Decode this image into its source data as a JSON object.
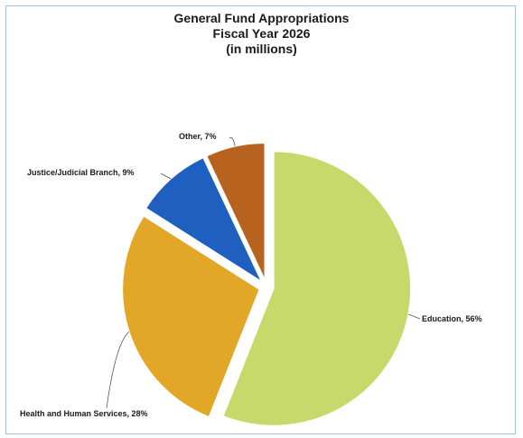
{
  "chart_data": {
    "type": "pie",
    "title": [
      "General Fund Appropriations",
      "Fiscal Year 2026",
      "(in millions)"
    ],
    "slices": [
      {
        "label": "Education",
        "value": 56,
        "color": "#c6d96a",
        "text": "Education, 56%"
      },
      {
        "label": "Health and Human Services",
        "value": 28,
        "color": "#e3a728",
        "text": "Health and Human Services, 28%"
      },
      {
        "label": "Justice/Judicial Branch",
        "value": 9,
        "color": "#1f5fbf",
        "text": "Justice/Judicial Branch, 9%"
      },
      {
        "label": "Other",
        "value": 7,
        "color": "#b8621f",
        "text": "Other, 7%"
      }
    ],
    "legend": "none",
    "exploded": true
  }
}
